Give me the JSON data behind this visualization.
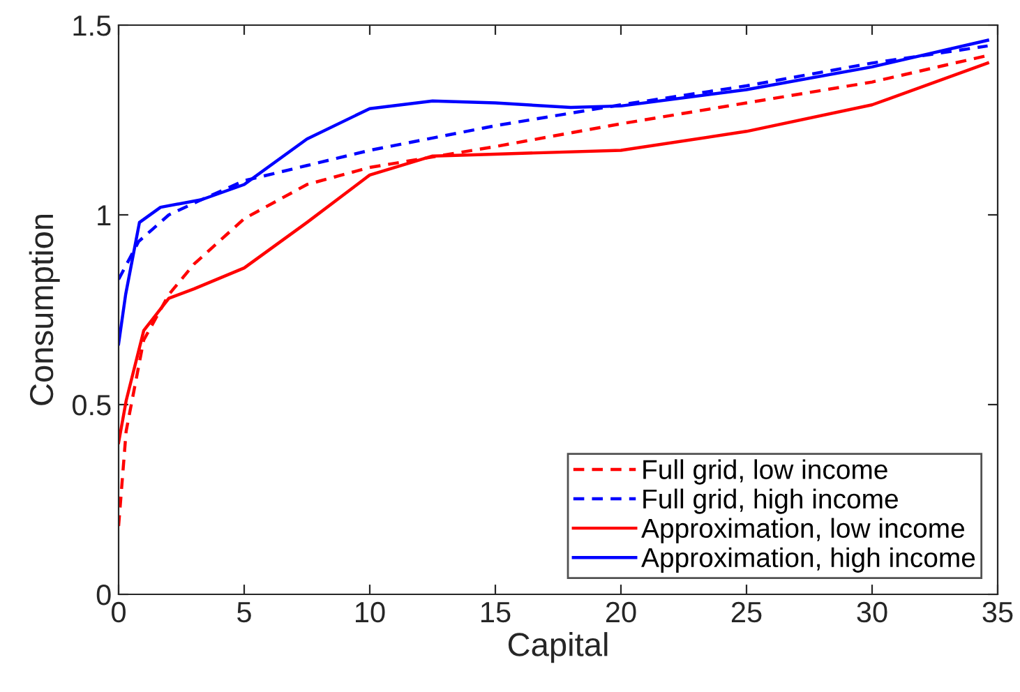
{
  "chart_data": {
    "type": "line",
    "xlabel": "Capital",
    "ylabel": "Consumption",
    "xlim": [
      0,
      35
    ],
    "ylim": [
      0,
      1.5
    ],
    "xticks": [
      0,
      5,
      10,
      15,
      20,
      25,
      30,
      35
    ],
    "yticks": [
      0,
      0.5,
      1,
      1.5
    ],
    "grid": false,
    "legend": "bottom right",
    "series": [
      {
        "name": "Full grid, low income",
        "color": "#ff0000",
        "line_style": "dashed",
        "x": [
          0,
          0.3,
          1,
          2,
          3,
          5,
          7.5,
          10,
          15,
          20,
          25,
          30,
          34.6
        ],
        "values": [
          0.18,
          0.43,
          0.67,
          0.79,
          0.87,
          0.99,
          1.08,
          1.125,
          1.18,
          1.24,
          1.295,
          1.35,
          1.42
        ]
      },
      {
        "name": "Full grid, high income",
        "color": "#0000ff",
        "line_style": "dashed",
        "x": [
          0,
          0.8,
          2,
          3.3,
          5,
          7.5,
          10,
          15,
          20,
          25,
          30,
          34.6
        ],
        "values": [
          0.83,
          0.93,
          1.0,
          1.04,
          1.09,
          1.13,
          1.17,
          1.235,
          1.29,
          1.34,
          1.4,
          1.445
        ]
      },
      {
        "name": "Approximation, low income",
        "color": "#ff0000",
        "line_style": "solid",
        "x": [
          0,
          0.3,
          1,
          2,
          3,
          5,
          7.5,
          10,
          12.5,
          15,
          20,
          25,
          30,
          34.6
        ],
        "values": [
          0.4,
          0.51,
          0.695,
          0.78,
          0.805,
          0.86,
          0.98,
          1.105,
          1.155,
          1.16,
          1.17,
          1.22,
          1.29,
          1.4
        ]
      },
      {
        "name": "Approximation, high income",
        "color": "#0000ff",
        "line_style": "solid",
        "x": [
          0,
          0.28,
          0.83,
          1.67,
          3.3,
          5,
          7.5,
          10,
          12.5,
          15,
          18,
          20,
          25,
          30,
          34.6
        ],
        "values": [
          0.66,
          0.79,
          0.98,
          1.02,
          1.04,
          1.08,
          1.2,
          1.28,
          1.3,
          1.295,
          1.283,
          1.287,
          1.33,
          1.39,
          1.46
        ]
      }
    ]
  }
}
